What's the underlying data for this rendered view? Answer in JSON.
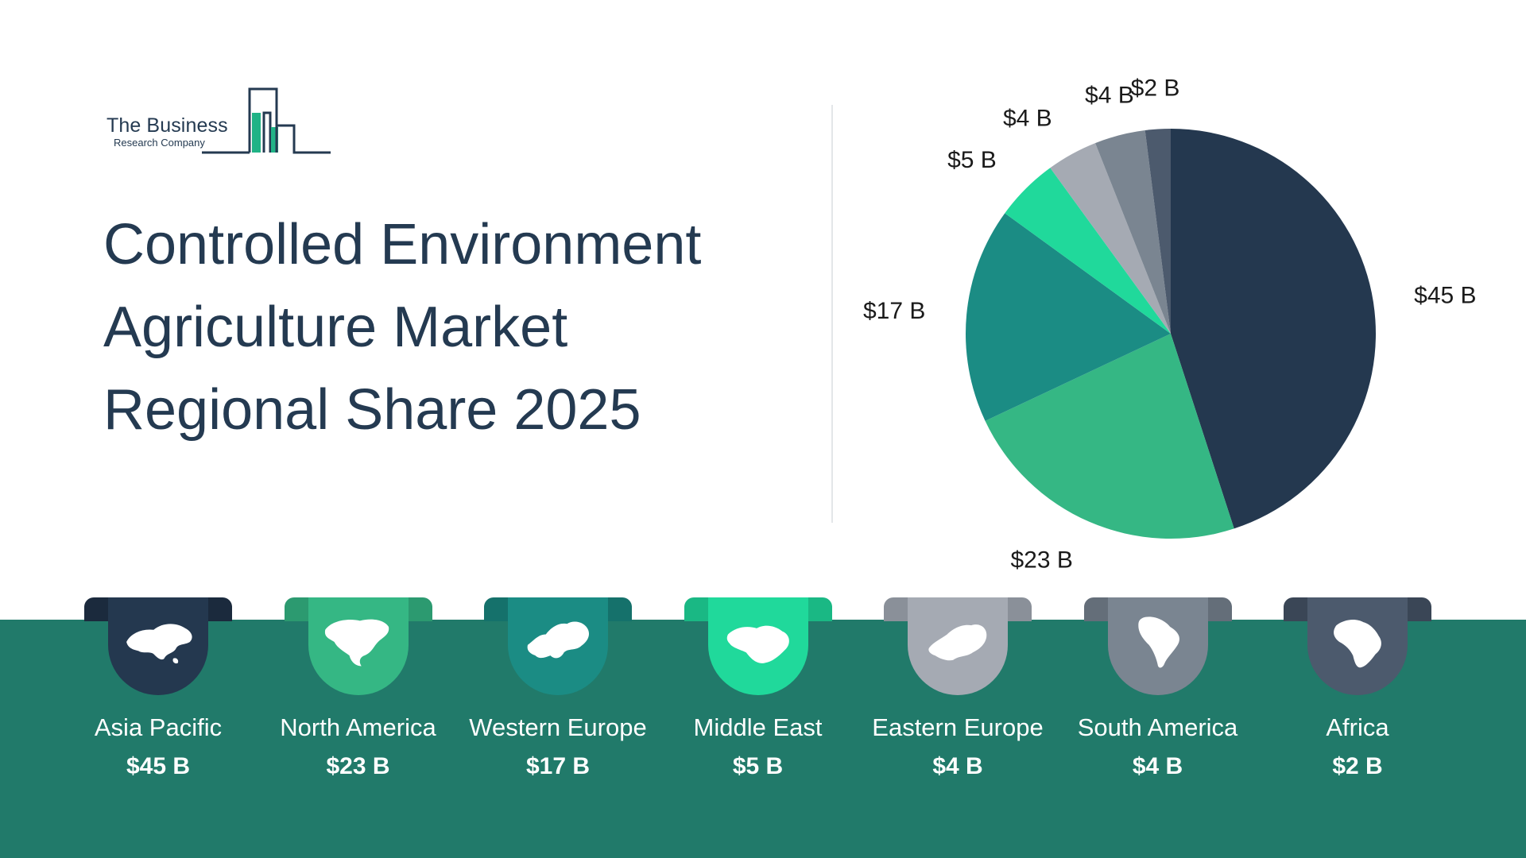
{
  "logo": {
    "name": "The Business",
    "subtitle": "Research Company"
  },
  "title": {
    "line1": "Controlled Environment",
    "line2": "Agriculture Market",
    "line3": "Regional Share 2025"
  },
  "colors": {
    "band": "#217a6a",
    "title": "#243a51"
  },
  "chart_data": {
    "type": "pie",
    "title": "",
    "categories": [
      "Asia Pacific",
      "North America",
      "Western Europe",
      "Middle East",
      "Eastern Europe",
      "South America",
      "Africa"
    ],
    "values": [
      45,
      23,
      17,
      5,
      4,
      4,
      2
    ],
    "labels": [
      "$45 B",
      "$23 B",
      "$17 B",
      "$5 B",
      "$4 B",
      "$4 B",
      "$2 B"
    ],
    "colors": [
      "#24384f",
      "#35b784",
      "#1b8c84",
      "#20d99b",
      "#a5aab3",
      "#7a8591",
      "#4c5a6d"
    ],
    "unit": "$ B"
  },
  "regions": [
    {
      "name": "Asia Pacific",
      "value": "$45 B",
      "color": "#24384f",
      "tab": "#1b2a3d",
      "icon": "asia-map-icon"
    },
    {
      "name": "North America",
      "value": "$23 B",
      "color": "#35b784",
      "tab": "#2c9a70",
      "icon": "north-america-map-icon"
    },
    {
      "name": "Western Europe",
      "value": "$17 B",
      "color": "#1b8c84",
      "tab": "#15716b",
      "icon": "western-europe-map-icon"
    },
    {
      "name": "Middle East",
      "value": "$5 B",
      "color": "#20d99b",
      "tab": "#1ab884",
      "icon": "middle-east-map-icon"
    },
    {
      "name": "Eastern Europe",
      "value": "$4 B",
      "color": "#a5aab3",
      "tab": "#8a9099",
      "icon": "eastern-europe-map-icon"
    },
    {
      "name": "South America",
      "value": "$4 B",
      "color": "#7a8591",
      "tab": "#646e79",
      "icon": "south-america-map-icon"
    },
    {
      "name": "Africa",
      "value": "$2 B",
      "color": "#4c5a6d",
      "tab": "#3a4656",
      "icon": "africa-map-icon"
    }
  ]
}
